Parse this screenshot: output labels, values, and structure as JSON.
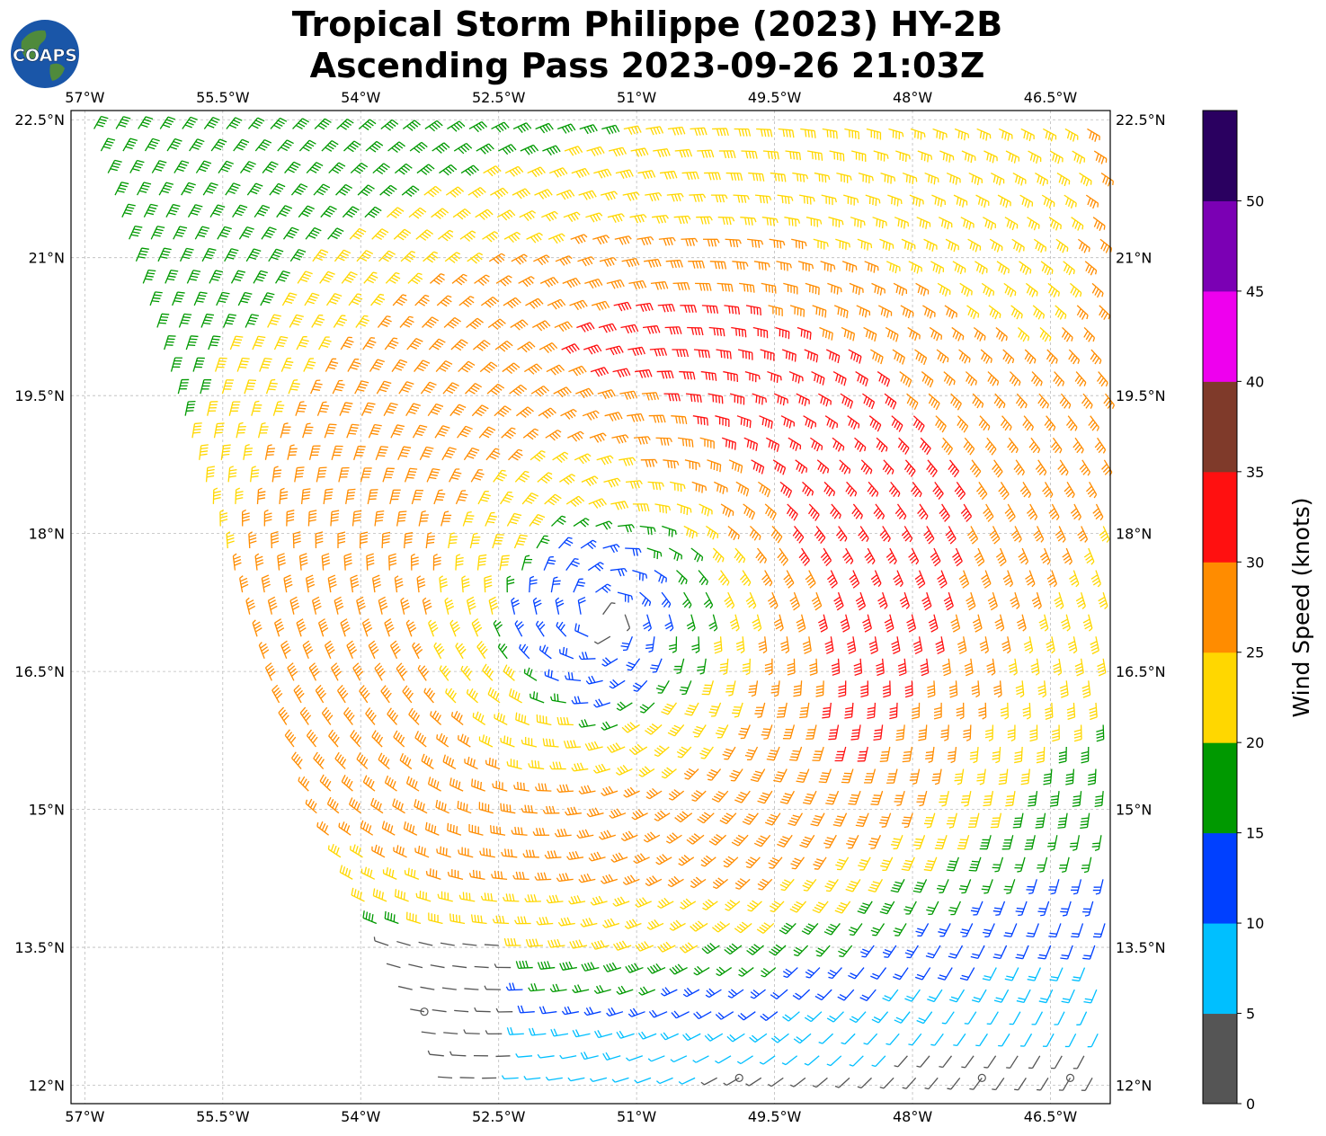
{
  "title": {
    "line1": "Tropical Storm Philippe (2023) HY-2B",
    "line2": "Ascending Pass 2023-09-26 21:03Z"
  },
  "logo": {
    "text": "COAPS",
    "ocean_color": "#1a56a8",
    "land_color": "#4f8a3c",
    "text_color": "#ffffff"
  },
  "map": {
    "lon_ticks": [
      "57°W",
      "55.5°W",
      "54°W",
      "52.5°W",
      "51°W",
      "49.5°W",
      "48°W",
      "46.5°W"
    ],
    "lat_ticks": [
      "22.5°N",
      "21°N",
      "19.5°N",
      "18°N",
      "16.5°N",
      "15°N",
      "13.5°N",
      "12°N"
    ],
    "lon_range": [
      -57.15,
      -45.85
    ],
    "lat_range": [
      11.8,
      22.6
    ],
    "storm_center": {
      "lon": -51.35,
      "lat": 17.1
    },
    "swath_west_edge": [
      [
        -56.9,
        22.4
      ],
      [
        -55.5,
        18.0
      ],
      [
        -54.5,
        15.0
      ],
      [
        -53.2,
        12.6
      ],
      [
        -52.9,
        11.8
      ]
    ],
    "grid": "dashed light gray",
    "wind_vectors": "colored wind barbs, cyclonic circulation"
  },
  "colorbar": {
    "label": "Wind Speed (knots)",
    "ticks": [
      "0",
      "5",
      "10",
      "15",
      "20",
      "25",
      "30",
      "35",
      "40",
      "45",
      "50"
    ],
    "colors": [
      "#555555",
      "#00bfff",
      "#0040ff",
      "#009900",
      "#ffd700",
      "#ff8c00",
      "#ff1010",
      "#7f3a2a",
      "#ee00ee",
      "#7b00b4",
      "#2a0060"
    ]
  }
}
